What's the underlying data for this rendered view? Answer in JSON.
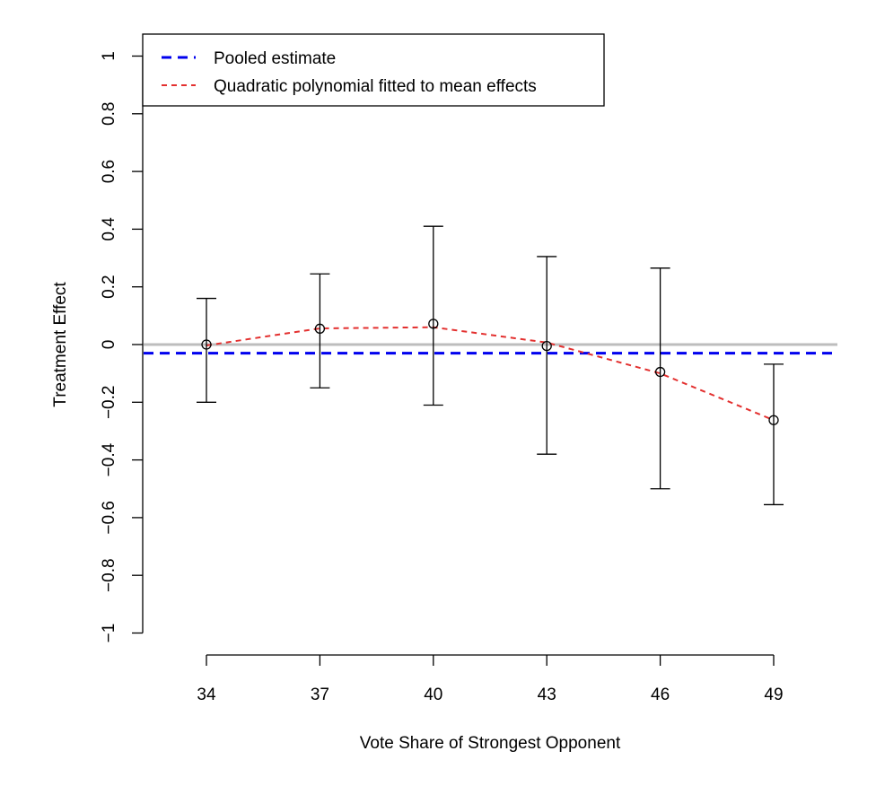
{
  "chart_data": {
    "type": "scatter",
    "xlabel": "Vote Share of Strongest Opponent",
    "ylabel": "Treatment Effect",
    "x_ticks": [
      34,
      37,
      40,
      43,
      46,
      49
    ],
    "y_ticks": [
      -1,
      -0.8,
      -0.6,
      -0.4,
      -0.2,
      0,
      0.2,
      0.4,
      0.6,
      0.8,
      1
    ],
    "y_tick_labels": [
      "−1",
      "−0.8",
      "−0.6",
      "−0.4",
      "−0.2",
      "0",
      "0.2",
      "0.4",
      "0.6",
      "0.8",
      "1"
    ],
    "ylim": [
      -1,
      1
    ],
    "grid": false,
    "legend_position": "top-left",
    "legend": [
      {
        "label": "Pooled estimate",
        "color": "#0000ee",
        "style": "dashed"
      },
      {
        "label": "Quadratic polynomial fitted to mean effects",
        "color": "#e3302f",
        "style": "dashed"
      }
    ],
    "points": [
      {
        "x": 34,
        "y": 0.0,
        "lower": -0.2,
        "upper": 0.16
      },
      {
        "x": 37,
        "y": 0.055,
        "lower": -0.15,
        "upper": 0.245
      },
      {
        "x": 40,
        "y": 0.072,
        "lower": -0.21,
        "upper": 0.41
      },
      {
        "x": 43,
        "y": -0.005,
        "lower": -0.38,
        "upper": 0.305
      },
      {
        "x": 46,
        "y": -0.095,
        "lower": -0.5,
        "upper": 0.265
      },
      {
        "x": 49,
        "y": -0.262,
        "lower": -0.555,
        "upper": -0.068
      }
    ],
    "fitted_curve": {
      "x": [
        34,
        37,
        40,
        43,
        46,
        49
      ],
      "y": [
        -0.003,
        0.056,
        0.06,
        0.007,
        -0.1,
        -0.262
      ]
    },
    "pooled_estimate": -0.03,
    "reference_line": 0,
    "colors": {
      "pooled": "#0000ee",
      "fit": "#e3302f",
      "reference": "#bdbdbd",
      "points": "#000000"
    }
  }
}
